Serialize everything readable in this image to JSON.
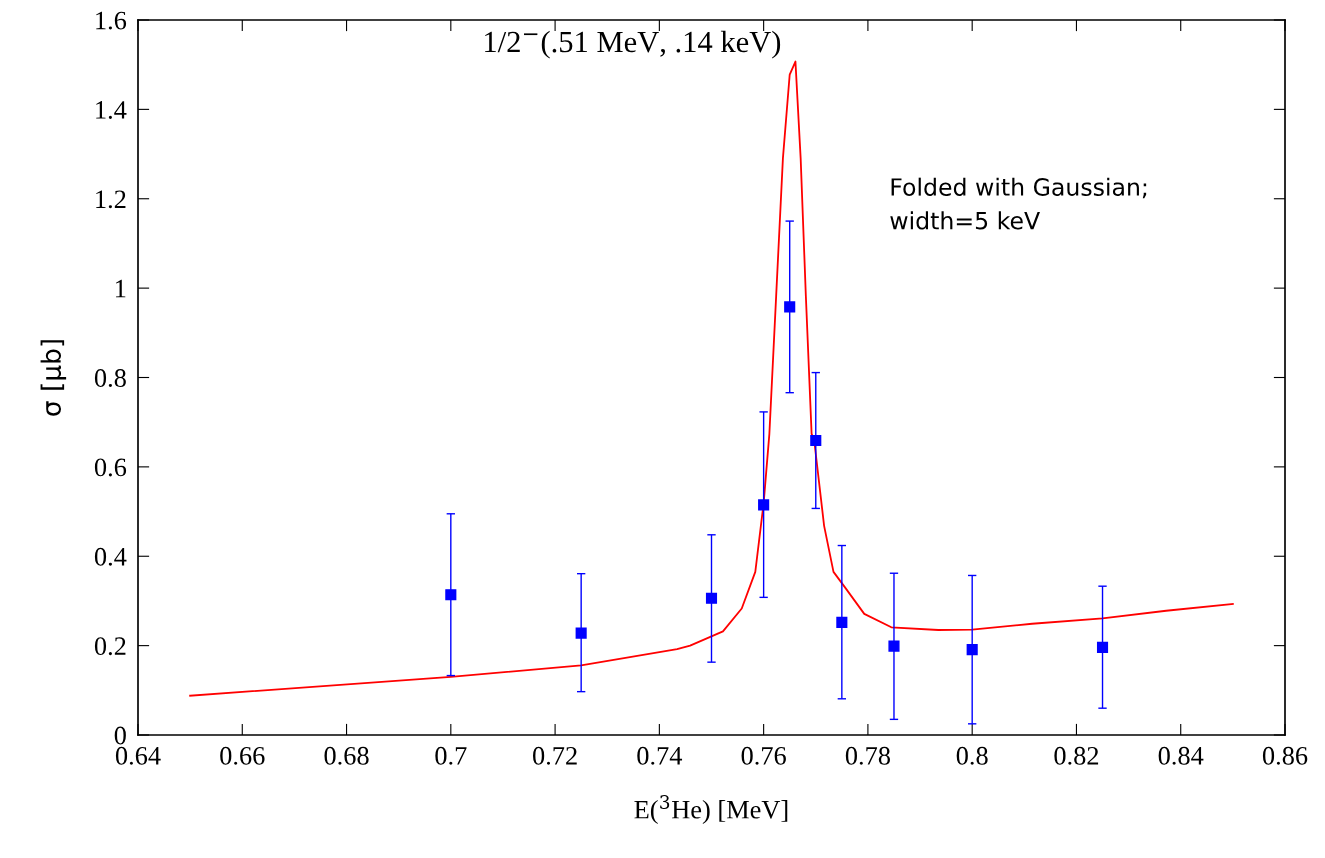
{
  "chart_data": {
    "type": "scatter",
    "xlabel": "E($^{3}$He) [MeV]",
    "ylabel": "σ [μb]",
    "xlim": [
      0.64,
      0.86
    ],
    "xticks": [
      0.64,
      0.66,
      0.68,
      0.7,
      0.72,
      0.74,
      0.76,
      0.78,
      0.8,
      0.82,
      0.84,
      0.86
    ],
    "ylim": [
      0,
      1.6
    ],
    "yticks": [
      0,
      0.2,
      0.4,
      0.6,
      0.8,
      1,
      1.2,
      1.4,
      1.6
    ],
    "grid": false,
    "legend": false,
    "annotations": [
      {
        "text": "1/2$^{−}$(.51 MeV, .14 keV)",
        "x": 0.7661,
        "y": 1.507
      },
      "Folded with Gaussian;\nwidth=5 keV"
    ],
    "series": [
      {
        "color": "#0000ff",
        "marker": "square",
        "x": [
          0.7,
          0.725,
          0.75,
          0.76,
          0.765,
          0.77,
          0.775,
          0.785,
          0.8,
          0.825
        ],
        "values": [
          0.314,
          0.228,
          0.306,
          0.515,
          0.958,
          0.659,
          0.252,
          0.199,
          0.191,
          0.196
        ],
        "errors": [
          [
            0.133,
            0.495
          ],
          [
            0.097,
            0.361
          ],
          [
            0.163,
            0.448
          ],
          [
            0.308,
            0.723
          ],
          [
            0.766,
            1.15
          ],
          [
            0.507,
            0.811
          ],
          [
            0.081,
            0.424
          ],
          [
            0.035,
            0.362
          ],
          [
            0.025,
            0.357
          ],
          [
            0.06,
            0.333
          ]
        ]
      },
      {
        "type": "line",
        "color": "#ff0000",
        "marker": "none",
        "line_style": "solid",
        "x": [
          0.65,
          0.7,
          0.725,
          0.7434,
          0.7459,
          0.7522,
          0.7558,
          0.7584,
          0.76,
          0.7611,
          0.7624,
          0.7637,
          0.765,
          0.7661,
          0.7671,
          0.7681,
          0.7692,
          0.7697,
          0.7716,
          0.7734,
          0.7755,
          0.7793,
          0.7845,
          0.7935,
          0.8,
          0.8115,
          0.825,
          0.8372,
          0.85
        ],
        "values": [
          0.088,
          0.13,
          0.156,
          0.192,
          0.2,
          0.232,
          0.283,
          0.365,
          0.519,
          0.674,
          0.982,
          1.291,
          1.478,
          1.507,
          1.291,
          0.982,
          0.674,
          0.659,
          0.468,
          0.365,
          0.332,
          0.271,
          0.241,
          0.235,
          0.236,
          0.249,
          0.261,
          0.278,
          0.293
        ]
      }
    ]
  }
}
